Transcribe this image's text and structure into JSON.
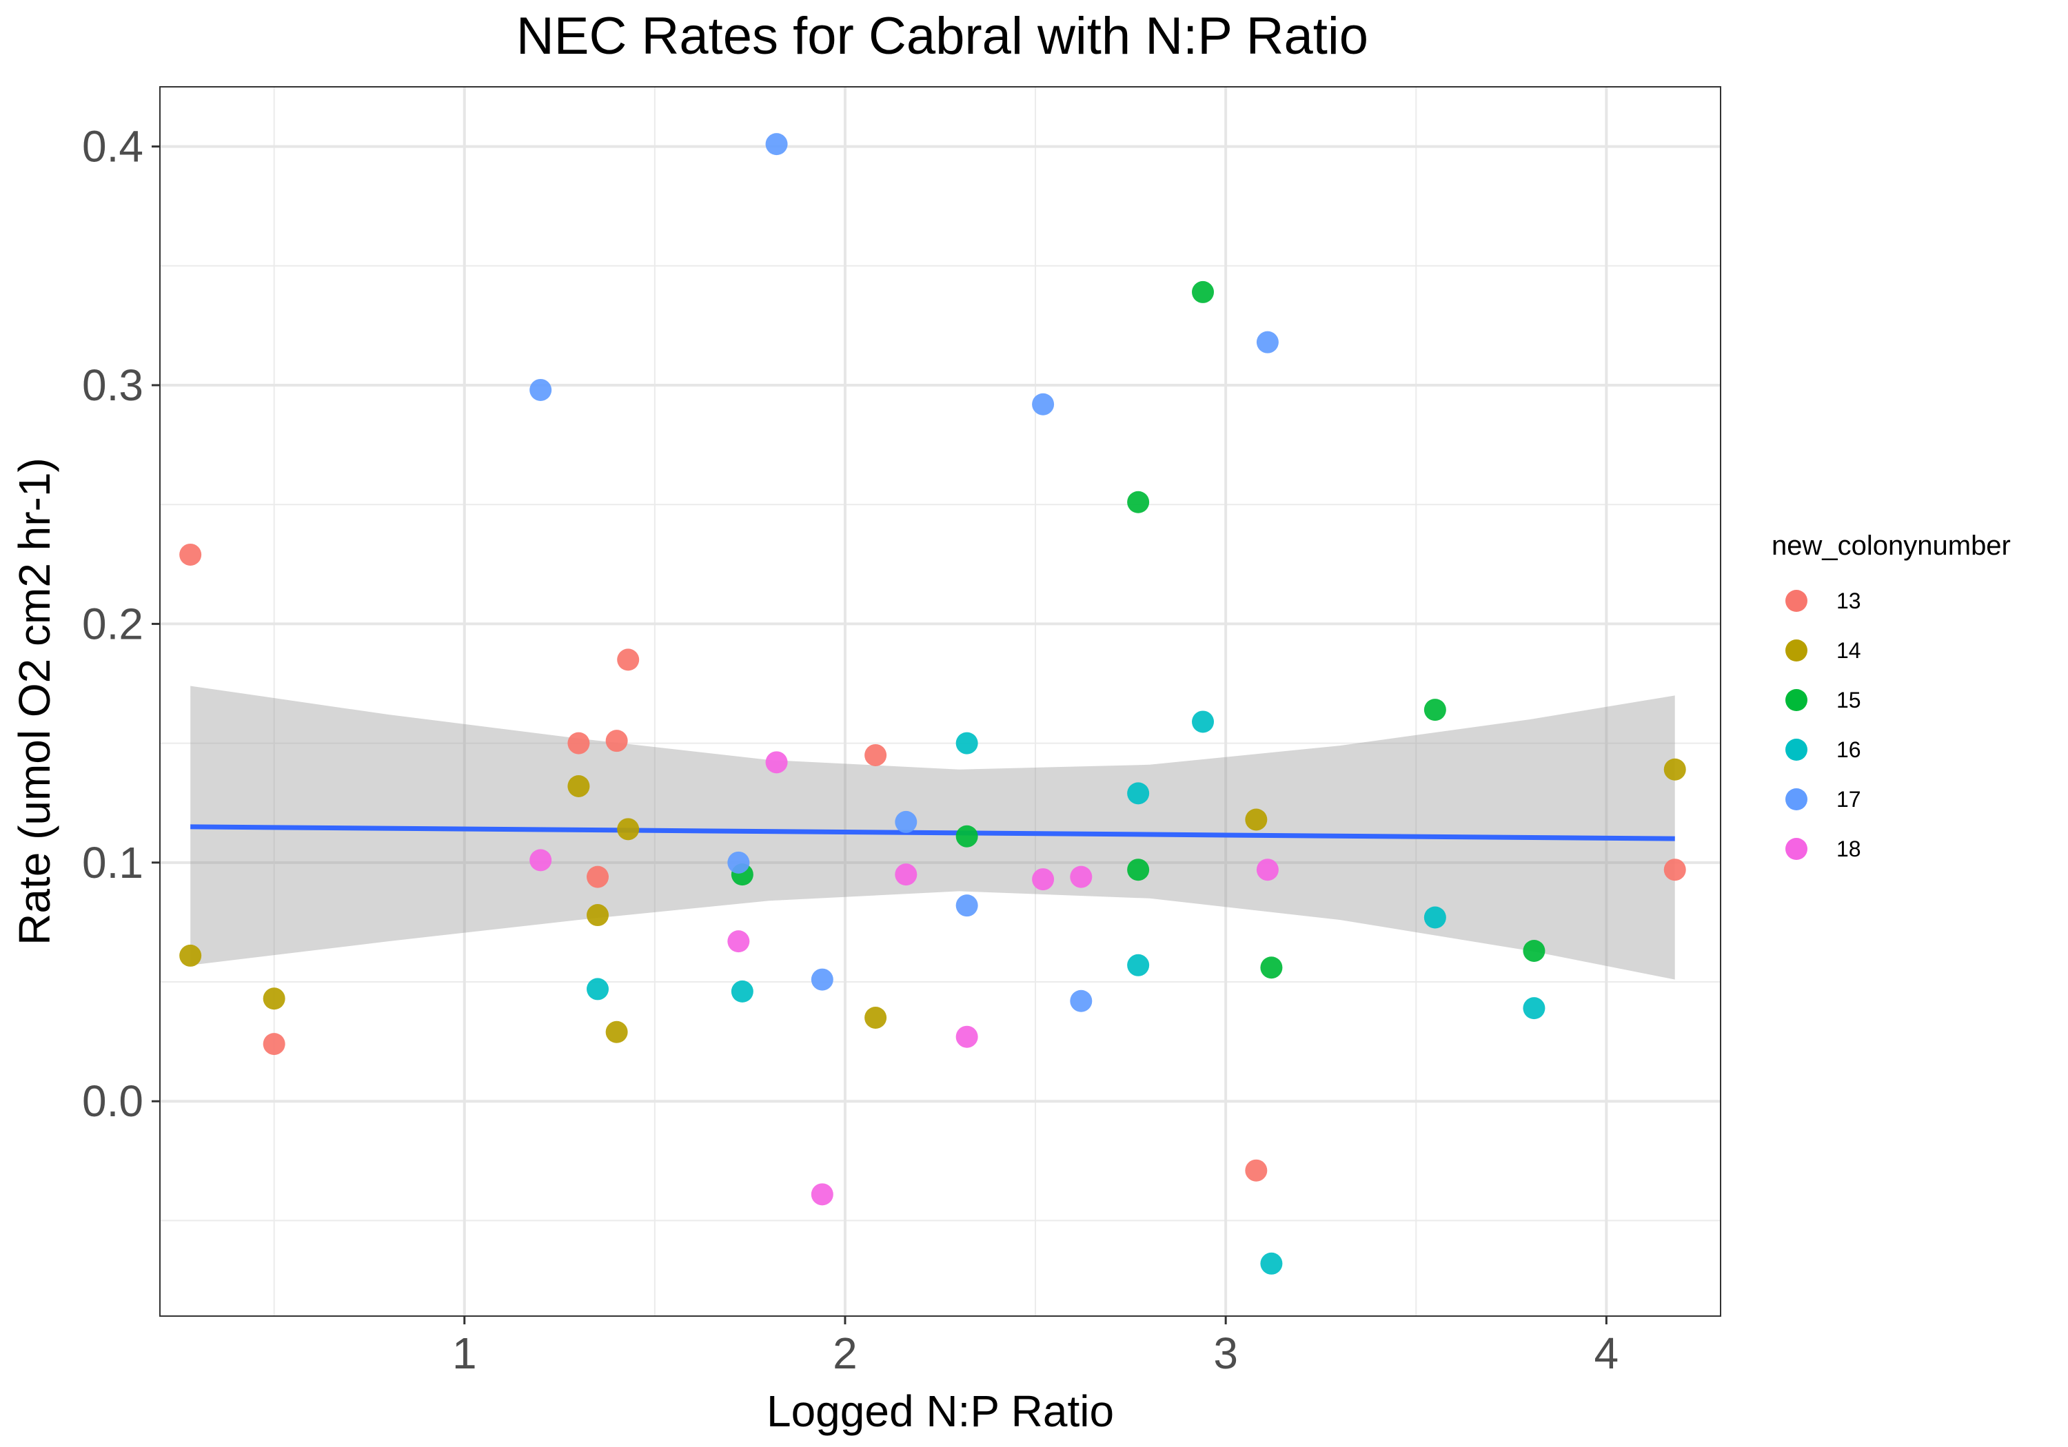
{
  "chart_data": {
    "type": "scatter",
    "title": "NEC Rates for Cabral with N:P Ratio",
    "xlabel": "Logged N:P Ratio",
    "ylabel": "Rate (umol O2 cm2 hr-1)",
    "xlim": [
      0.2,
      4.3
    ],
    "ylim": [
      -0.09,
      0.425
    ],
    "xticks": [
      1,
      2,
      3,
      4
    ],
    "yticks": [
      0.0,
      0.1,
      0.2,
      0.3,
      0.4
    ],
    "ytick_labels": [
      "0.0",
      "0.1",
      "0.2",
      "0.3",
      "0.4"
    ],
    "grid": true,
    "legend": {
      "title": "new_colonynumber",
      "position": "right"
    },
    "series": [
      {
        "name": "13",
        "color": "#F8766D",
        "points": [
          [
            0.28,
            0.229
          ],
          [
            0.5,
            0.024
          ],
          [
            1.3,
            0.15
          ],
          [
            1.35,
            0.094
          ],
          [
            1.4,
            0.151
          ],
          [
            1.43,
            0.185
          ],
          [
            2.08,
            0.145
          ],
          [
            3.08,
            -0.029
          ],
          [
            4.18,
            0.097
          ]
        ]
      },
      {
        "name": "14",
        "color": "#B79F00",
        "points": [
          [
            0.28,
            0.061
          ],
          [
            0.5,
            0.043
          ],
          [
            1.3,
            0.132
          ],
          [
            1.35,
            0.078
          ],
          [
            1.4,
            0.029
          ],
          [
            1.43,
            0.114
          ],
          [
            2.08,
            0.035
          ],
          [
            3.08,
            0.118
          ],
          [
            4.18,
            0.139
          ]
        ]
      },
      {
        "name": "15",
        "color": "#00BA38",
        "points": [
          [
            1.73,
            0.095
          ],
          [
            2.32,
            0.111
          ],
          [
            2.77,
            0.251
          ],
          [
            2.77,
            0.097
          ],
          [
            2.94,
            0.339
          ],
          [
            3.12,
            0.056
          ],
          [
            3.55,
            0.164
          ],
          [
            3.81,
            0.063
          ]
        ]
      },
      {
        "name": "16",
        "color": "#00BFC4",
        "points": [
          [
            1.35,
            0.047
          ],
          [
            1.73,
            0.046
          ],
          [
            2.32,
            0.15
          ],
          [
            2.77,
            0.129
          ],
          [
            2.77,
            0.057
          ],
          [
            2.94,
            0.159
          ],
          [
            3.12,
            -0.068
          ],
          [
            3.55,
            0.077
          ],
          [
            3.81,
            0.039
          ]
        ]
      },
      {
        "name": "17",
        "color": "#619CFF",
        "points": [
          [
            1.2,
            0.298
          ],
          [
            1.72,
            0.1
          ],
          [
            1.82,
            0.401
          ],
          [
            1.94,
            0.051
          ],
          [
            2.16,
            0.117
          ],
          [
            2.32,
            0.082
          ],
          [
            2.52,
            0.292
          ],
          [
            2.62,
            0.042
          ],
          [
            3.11,
            0.318
          ]
        ]
      },
      {
        "name": "18",
        "color": "#F564E3",
        "points": [
          [
            1.2,
            0.101
          ],
          [
            1.72,
            0.067
          ],
          [
            1.82,
            0.142
          ],
          [
            1.94,
            -0.039
          ],
          [
            2.16,
            0.095
          ],
          [
            2.32,
            0.027
          ],
          [
            2.52,
            0.093
          ],
          [
            2.62,
            0.094
          ],
          [
            3.11,
            0.097
          ]
        ]
      }
    ],
    "trend_line": {
      "color": "#3366FF",
      "ribbon_color": "#999999",
      "points": [
        [
          0.28,
          0.115
        ],
        [
          4.18,
          0.11
        ]
      ],
      "ribbon": {
        "x": [
          0.28,
          0.8,
          1.3,
          1.8,
          2.3,
          2.8,
          3.3,
          3.8,
          4.18
        ],
        "upper": [
          0.174,
          0.162,
          0.152,
          0.143,
          0.139,
          0.141,
          0.149,
          0.16,
          0.17
        ],
        "lower": [
          0.057,
          0.067,
          0.076,
          0.084,
          0.088,
          0.085,
          0.076,
          0.063,
          0.051
        ]
      }
    }
  }
}
